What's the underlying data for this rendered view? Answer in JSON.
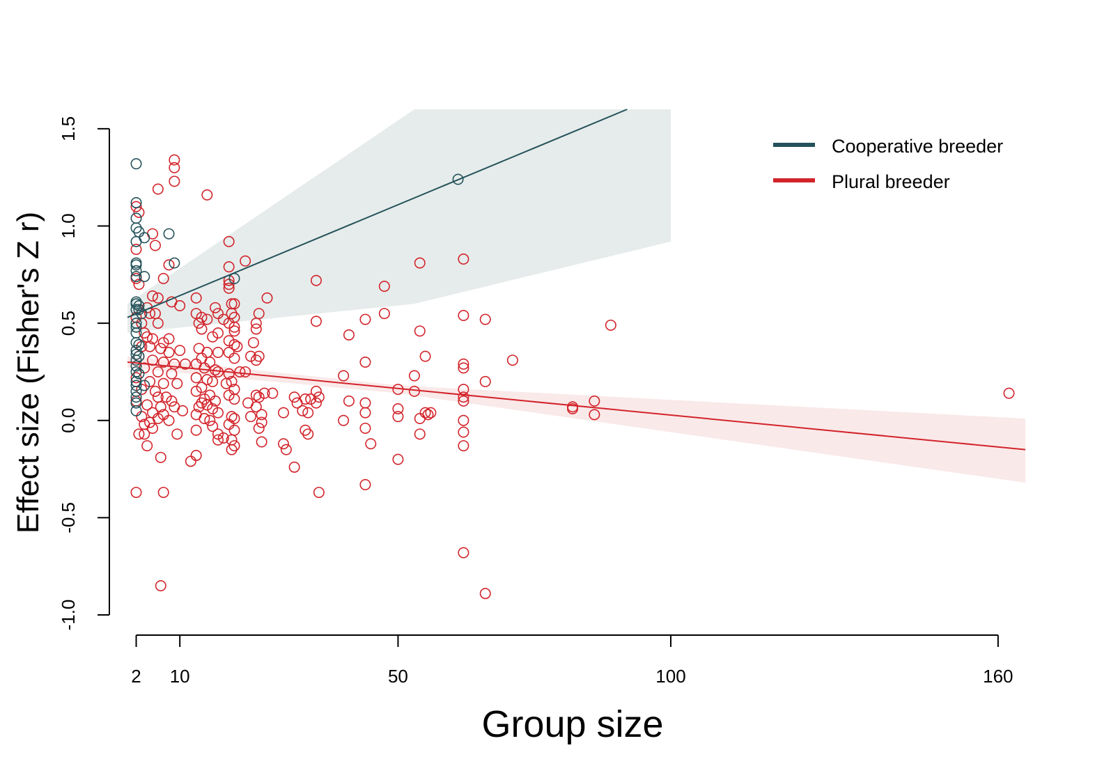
{
  "chart_data": {
    "type": "scatter",
    "xlabel": "Group size",
    "ylabel": "Effect size (Fisher's Z r)",
    "xlim": [
      0.4,
      165
    ],
    "ylim": [
      -1.0,
      1.6
    ],
    "xticks": [
      2,
      10,
      50,
      100,
      160
    ],
    "yticks": [
      -1.0,
      -0.5,
      0.0,
      0.5,
      1.0,
      1.5
    ],
    "grid": false,
    "legend_position": "top-right",
    "series": [
      {
        "name": "Cooperative breeder",
        "color": "#24525a",
        "band_color": "#e6eceb",
        "trend": {
          "x_start": 0.4,
          "x_end": 92,
          "y_start": 0.53,
          "y_end": 1.6
        },
        "band": [
          {
            "x": 0.4,
            "lo": 0.45,
            "hi": 0.6
          },
          {
            "x": 53,
            "lo": 0.6,
            "hi": 1.6
          },
          {
            "x": 100,
            "lo": 0.92,
            "hi": 1.6
          }
        ],
        "points": [
          [
            2,
            1.32
          ],
          [
            2,
            1.12
          ],
          [
            2,
            1.04
          ],
          [
            2,
            0.99
          ],
          [
            2.5,
            0.97
          ],
          [
            2,
            0.92
          ],
          [
            3.5,
            0.94
          ],
          [
            8,
            0.96
          ],
          [
            2,
            0.81
          ],
          [
            2,
            0.8
          ],
          [
            2,
            0.77
          ],
          [
            2,
            0.74
          ],
          [
            3.5,
            0.74
          ],
          [
            9,
            0.81
          ],
          [
            2,
            0.61
          ],
          [
            2,
            0.6
          ],
          [
            2.5,
            0.59
          ],
          [
            2,
            0.57
          ],
          [
            2.5,
            0.57
          ],
          [
            3,
            0.55
          ],
          [
            2,
            0.5
          ],
          [
            2,
            0.48
          ],
          [
            2,
            0.45
          ],
          [
            2,
            0.4
          ],
          [
            2.5,
            0.39
          ],
          [
            2,
            0.36
          ],
          [
            2,
            0.34
          ],
          [
            2.5,
            0.33
          ],
          [
            2,
            0.31
          ],
          [
            2,
            0.28
          ],
          [
            2,
            0.25
          ],
          [
            2.5,
            0.24
          ],
          [
            2,
            0.2
          ],
          [
            2,
            0.18
          ],
          [
            3.5,
            0.18
          ],
          [
            2,
            0.15
          ],
          [
            2,
            0.12
          ],
          [
            2,
            0.09
          ],
          [
            2,
            0.05
          ],
          [
            20,
            0.73
          ],
          [
            61,
            1.24
          ]
        ]
      },
      {
        "name": "Plural breeder",
        "color": "#d2232a",
        "band_color": "#fae9e9",
        "trend": {
          "x_start": 0.4,
          "x_end": 165,
          "y_start": 0.3,
          "y_end": -0.15
        },
        "band": [
          {
            "x": 0.4,
            "lo": 0.27,
            "hi": 0.33
          },
          {
            "x": 50,
            "lo": 0.14,
            "hi": 0.18
          },
          {
            "x": 165,
            "lo": -0.32,
            "hi": 0.01
          }
        ],
        "points": [
          [
            9,
            1.34
          ],
          [
            9,
            1.3
          ],
          [
            9,
            1.23
          ],
          [
            6,
            1.19
          ],
          [
            15,
            1.16
          ],
          [
            2,
            1.1
          ],
          [
            2.5,
            1.07
          ],
          [
            5,
            0.96
          ],
          [
            5.5,
            0.9
          ],
          [
            2,
            0.88
          ],
          [
            19,
            0.92
          ],
          [
            8,
            0.8
          ],
          [
            2,
            0.73
          ],
          [
            7,
            0.73
          ],
          [
            2.5,
            0.7
          ],
          [
            5,
            0.64
          ],
          [
            6,
            0.63
          ],
          [
            4,
            0.58
          ],
          [
            8.5,
            0.61
          ],
          [
            10,
            0.59
          ],
          [
            13,
            0.63
          ],
          [
            4.5,
            0.55
          ],
          [
            5.5,
            0.55
          ],
          [
            2,
            0.53
          ],
          [
            3,
            0.5
          ],
          [
            6,
            0.5
          ],
          [
            3.5,
            0.45
          ],
          [
            4,
            0.43
          ],
          [
            5,
            0.42
          ],
          [
            8,
            0.42
          ],
          [
            7,
            0.4
          ],
          [
            3,
            0.38
          ],
          [
            4.5,
            0.38
          ],
          [
            6.5,
            0.37
          ],
          [
            8,
            0.35
          ],
          [
            10,
            0.36
          ],
          [
            2.5,
            0.33
          ],
          [
            5,
            0.31
          ],
          [
            7,
            0.3
          ],
          [
            9,
            0.29
          ],
          [
            11,
            0.29
          ],
          [
            3.5,
            0.27
          ],
          [
            6,
            0.25
          ],
          [
            8.5,
            0.24
          ],
          [
            2,
            0.22
          ],
          [
            4.5,
            0.2
          ],
          [
            7,
            0.19
          ],
          [
            9.5,
            0.19
          ],
          [
            3,
            0.16
          ],
          [
            5.5,
            0.15
          ],
          [
            6,
            0.12
          ],
          [
            7.5,
            0.12
          ],
          [
            8.5,
            0.1
          ],
          [
            2,
            0.1
          ],
          [
            4,
            0.08
          ],
          [
            6.5,
            0.07
          ],
          [
            9,
            0.07
          ],
          [
            10.5,
            0.05
          ],
          [
            5,
            0.04
          ],
          [
            7,
            0.03
          ],
          [
            3,
            0.02
          ],
          [
            6,
            0.01
          ],
          [
            8,
            0.0
          ],
          [
            4.5,
            -0.01
          ],
          [
            3.5,
            -0.02
          ],
          [
            2.5,
            -0.07
          ],
          [
            3.5,
            -0.07
          ],
          [
            5,
            -0.04
          ],
          [
            9.5,
            -0.07
          ],
          [
            4,
            -0.13
          ],
          [
            6.5,
            -0.19
          ],
          [
            12,
            -0.21
          ],
          [
            13,
            -0.18
          ],
          [
            7,
            -0.37
          ],
          [
            2,
            -0.37
          ],
          [
            6.5,
            -0.85
          ],
          [
            13,
            0.55
          ],
          [
            14,
            0.53
          ],
          [
            15,
            0.52
          ],
          [
            13.5,
            0.5
          ],
          [
            16.5,
            0.58
          ],
          [
            17,
            0.55
          ],
          [
            18,
            0.52
          ],
          [
            14,
            0.47
          ],
          [
            16,
            0.43
          ],
          [
            17,
            0.45
          ],
          [
            13.5,
            0.37
          ],
          [
            15,
            0.35
          ],
          [
            17,
            0.35
          ],
          [
            14,
            0.32
          ],
          [
            15.5,
            0.3
          ],
          [
            13,
            0.29
          ],
          [
            14.5,
            0.27
          ],
          [
            16.5,
            0.26
          ],
          [
            17,
            0.25
          ],
          [
            13,
            0.22
          ],
          [
            15,
            0.21
          ],
          [
            16,
            0.2
          ],
          [
            14,
            0.17
          ],
          [
            13,
            0.15
          ],
          [
            15.5,
            0.13
          ],
          [
            14.5,
            0.11
          ],
          [
            16.5,
            0.1
          ],
          [
            14,
            0.09
          ],
          [
            15,
            0.08
          ],
          [
            13.5,
            0.07
          ],
          [
            16,
            0.06
          ],
          [
            17,
            0.04
          ],
          [
            13,
            0.03
          ],
          [
            14.5,
            0.01
          ],
          [
            15.5,
            0.0
          ],
          [
            13,
            -0.05
          ],
          [
            16,
            -0.03
          ],
          [
            17,
            -0.07
          ],
          [
            18,
            -0.09
          ],
          [
            17,
            -0.1
          ],
          [
            19,
            0.79
          ],
          [
            19,
            0.72
          ],
          [
            19,
            0.7
          ],
          [
            19,
            0.68
          ],
          [
            19.5,
            0.6
          ],
          [
            20,
            0.6
          ],
          [
            19.5,
            0.55
          ],
          [
            20,
            0.53
          ],
          [
            19,
            0.5
          ],
          [
            20,
            0.48
          ],
          [
            20,
            0.46
          ],
          [
            19,
            0.41
          ],
          [
            20,
            0.39
          ],
          [
            20.5,
            0.38
          ],
          [
            19,
            0.35
          ],
          [
            20,
            0.32
          ],
          [
            19,
            0.24
          ],
          [
            19.5,
            0.2
          ],
          [
            18.5,
            0.19
          ],
          [
            20,
            0.16
          ],
          [
            19,
            0.13
          ],
          [
            20,
            0.11
          ],
          [
            19.5,
            0.02
          ],
          [
            20,
            0.01
          ],
          [
            19,
            -0.02
          ],
          [
            20,
            -0.05
          ],
          [
            19.5,
            -0.1
          ],
          [
            20,
            -0.13
          ],
          [
            19.5,
            -0.15
          ],
          [
            22,
            0.82
          ],
          [
            23,
            0.33
          ],
          [
            21,
            0.25
          ],
          [
            22,
            0.25
          ],
          [
            24,
            0.5
          ],
          [
            24.5,
            0.55
          ],
          [
            24,
            0.47
          ],
          [
            23.5,
            0.4
          ],
          [
            24.5,
            0.33
          ],
          [
            24,
            0.31
          ],
          [
            22.5,
            0.09
          ],
          [
            24,
            0.13
          ],
          [
            24.5,
            0.12
          ],
          [
            24,
            0.07
          ],
          [
            23,
            0.02
          ],
          [
            25,
            0.03
          ],
          [
            25,
            -0.01
          ],
          [
            24.5,
            -0.04
          ],
          [
            25,
            -0.11
          ],
          [
            26,
            0.63
          ],
          [
            25.5,
            0.14
          ],
          [
            27,
            0.14
          ],
          [
            29,
            0.04
          ],
          [
            29,
            -0.12
          ],
          [
            29.5,
            -0.15
          ],
          [
            31,
            0.12
          ],
          [
            31.5,
            0.09
          ],
          [
            31,
            -0.24
          ],
          [
            33,
            0.11
          ],
          [
            32.5,
            0.05
          ],
          [
            33.5,
            0.04
          ],
          [
            33,
            -0.05
          ],
          [
            33.5,
            -0.07
          ],
          [
            34,
            0.11
          ],
          [
            35,
            0.72
          ],
          [
            35,
            0.51
          ],
          [
            35,
            0.15
          ],
          [
            35.5,
            0.12
          ],
          [
            35,
            0.09
          ],
          [
            35.5,
            -0.37
          ],
          [
            40,
            0.23
          ],
          [
            40,
            0.0
          ],
          [
            41,
            0.44
          ],
          [
            41,
            0.1
          ],
          [
            44,
            0.52
          ],
          [
            44,
            0.3
          ],
          [
            44,
            0.09
          ],
          [
            44,
            0.04
          ],
          [
            44,
            -0.04
          ],
          [
            44,
            -0.33
          ],
          [
            45,
            -0.12
          ],
          [
            47.5,
            0.69
          ],
          [
            47.5,
            0.55
          ],
          [
            50,
            0.16
          ],
          [
            50,
            0.06
          ],
          [
            50,
            0.02
          ],
          [
            50,
            -0.2
          ],
          [
            53,
            0.23
          ],
          [
            53,
            0.15
          ],
          [
            54,
            0.81
          ],
          [
            54,
            0.46
          ],
          [
            54,
            0.01
          ],
          [
            54,
            -0.07
          ],
          [
            55,
            0.33
          ],
          [
            55,
            0.04
          ],
          [
            55.5,
            0.03
          ],
          [
            56,
            0.04
          ],
          [
            62,
            0.83
          ],
          [
            62,
            0.54
          ],
          [
            62,
            0.29
          ],
          [
            62,
            0.27
          ],
          [
            62,
            0.16
          ],
          [
            62,
            0.12
          ],
          [
            62,
            0.1
          ],
          [
            62,
            0.0
          ],
          [
            62,
            -0.06
          ],
          [
            62,
            -0.13
          ],
          [
            62,
            -0.68
          ],
          [
            66,
            0.52
          ],
          [
            66,
            0.2
          ],
          [
            66,
            -0.89
          ],
          [
            71,
            0.31
          ],
          [
            82,
            0.07
          ],
          [
            82,
            0.06
          ],
          [
            86,
            0.1
          ],
          [
            86,
            0.03
          ],
          [
            89,
            0.49
          ],
          [
            162,
            0.14
          ]
        ]
      }
    ]
  }
}
